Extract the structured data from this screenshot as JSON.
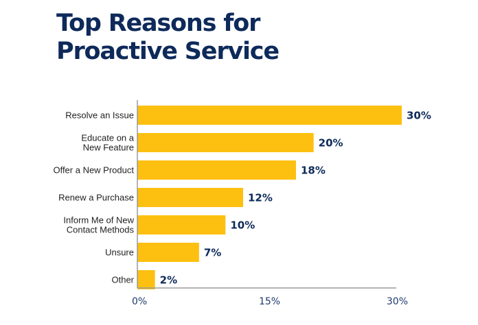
{
  "colors": {
    "bar": "#fdc010",
    "title": "#0e2a5a",
    "value_label": "#0e2a5a",
    "axis": "#9a9a9a"
  },
  "chart_data": {
    "type": "bar",
    "orientation": "horizontal",
    "title": "Top Reasons for Proactive Service",
    "title_lines": [
      "Top Reasons for",
      "Proactive Service"
    ],
    "categories": [
      [
        "Resolve an Issue"
      ],
      [
        "Educate on a",
        "New Feature"
      ],
      [
        "Offer a New Product"
      ],
      [
        "Renew a Purchase"
      ],
      [
        "Inform Me of New",
        "Contact Methods"
      ],
      [
        "Unsure"
      ],
      [
        "Other"
      ]
    ],
    "values": [
      30,
      20,
      18,
      12,
      10,
      7,
      2
    ],
    "value_labels": [
      "30%",
      "20%",
      "18%",
      "12%",
      "10%",
      "7%",
      "2%"
    ],
    "xlabel": "",
    "ylabel": "",
    "xlim": [
      0,
      30
    ],
    "x_ticks": [
      0,
      15,
      30
    ],
    "x_tick_labels": [
      "0%",
      "15%",
      "30%"
    ],
    "grid": false,
    "legend": "none"
  }
}
